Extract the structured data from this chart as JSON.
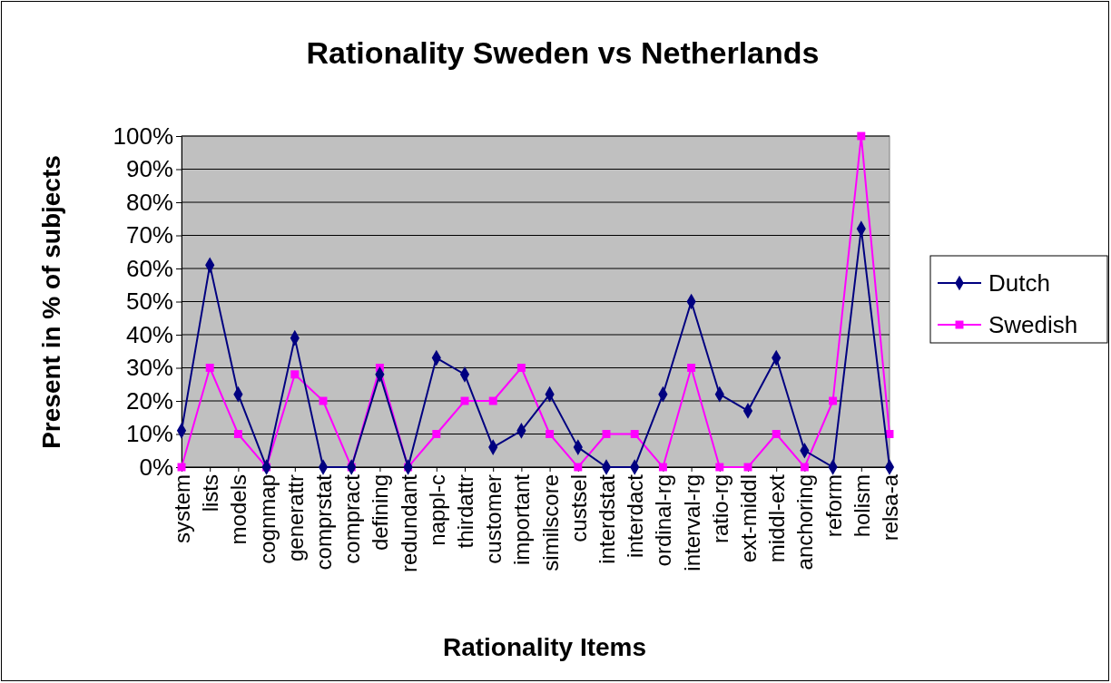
{
  "chart_data": {
    "type": "line",
    "title": "Rationality Sweden vs Netherlands",
    "xlabel": "Rationality Items",
    "ylabel": "Present in % of subjects",
    "categories": [
      "system",
      "lists",
      "models",
      "cognmap",
      "generattr",
      "comprstat",
      "compract",
      "defining",
      "redundant",
      "nappl-c",
      "thirdattr",
      "customer",
      "important",
      "similscore",
      "custsel",
      "interdstat",
      "interdact",
      "ordinal-rg",
      "interval-rg",
      "ratio-rg",
      "ext-middl",
      "middl-ext",
      "anchoring",
      "reform",
      "holism",
      "relsa-a"
    ],
    "series": [
      {
        "name": "Dutch",
        "color": "#000080",
        "marker": "diamond",
        "values": [
          11,
          61,
          22,
          0,
          39,
          0,
          0,
          28,
          0,
          33,
          28,
          6,
          11,
          22,
          6,
          0,
          0,
          22,
          50,
          22,
          17,
          33,
          5,
          0,
          72,
          0
        ]
      },
      {
        "name": "Swedish",
        "color": "#ff00ff",
        "marker": "square",
        "values": [
          0,
          30,
          10,
          0,
          28,
          20,
          0,
          30,
          0,
          10,
          20,
          20,
          30,
          10,
          0,
          10,
          10,
          0,
          30,
          0,
          0,
          10,
          0,
          20,
          100,
          10
        ]
      }
    ],
    "ylim": [
      0,
      100
    ],
    "yticks": [
      {
        "value": 0,
        "label": "0%"
      },
      {
        "value": 10,
        "label": "10%"
      },
      {
        "value": 20,
        "label": "20%"
      },
      {
        "value": 30,
        "label": "30%"
      },
      {
        "value": 40,
        "label": "40%"
      },
      {
        "value": 50,
        "label": "50%"
      },
      {
        "value": 60,
        "label": "60%"
      },
      {
        "value": 70,
        "label": "70%"
      },
      {
        "value": 80,
        "label": "80%"
      },
      {
        "value": 90,
        "label": "90%"
      },
      {
        "value": 100,
        "label": "100%"
      }
    ],
    "grid": "y",
    "legend": "right"
  }
}
